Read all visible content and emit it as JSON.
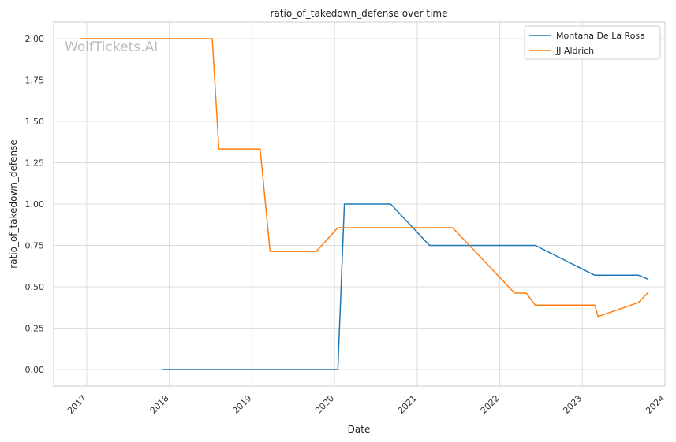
{
  "chart_data": {
    "type": "line",
    "title": "ratio_of_takedown_defense over time",
    "xlabel": "Date",
    "ylabel": "ratio_of_takedown_defense",
    "watermark": "WolfTickets.AI",
    "xlim": [
      2016.6,
      2024.0
    ],
    "ylim": [
      -0.1,
      2.1
    ],
    "x_ticks": [
      "2017",
      "2018",
      "2019",
      "2020",
      "2021",
      "2022",
      "2023",
      "2024"
    ],
    "y_ticks": [
      "0.00",
      "0.25",
      "0.50",
      "0.75",
      "1.00",
      "1.25",
      "1.50",
      "1.75",
      "2.00"
    ],
    "grid": true,
    "legend_position": "upper right",
    "series": [
      {
        "name": "Montana De La Rosa",
        "color": "#1f77b4",
        "points": [
          [
            2017.92,
            0.0
          ],
          [
            2020.04,
            0.0
          ],
          [
            2020.12,
            1.0
          ],
          [
            2020.68,
            1.0
          ],
          [
            2021.15,
            0.75
          ],
          [
            2022.43,
            0.75
          ],
          [
            2023.15,
            0.57
          ],
          [
            2023.68,
            0.57
          ],
          [
            2023.8,
            0.545
          ]
        ]
      },
      {
        "name": "JJ Aldrich",
        "color": "#ff7f0e",
        "points": [
          [
            2016.92,
            2.0
          ],
          [
            2018.52,
            2.0
          ],
          [
            2018.6,
            1.333
          ],
          [
            2019.1,
            1.333
          ],
          [
            2019.22,
            0.714
          ],
          [
            2019.78,
            0.714
          ],
          [
            2020.04,
            0.857
          ],
          [
            2021.43,
            0.857
          ],
          [
            2022.18,
            0.462
          ],
          [
            2022.32,
            0.462
          ],
          [
            2022.43,
            0.389
          ],
          [
            2023.15,
            0.389
          ],
          [
            2023.19,
            0.32
          ],
          [
            2023.68,
            0.405
          ],
          [
            2023.8,
            0.467
          ]
        ]
      }
    ]
  }
}
